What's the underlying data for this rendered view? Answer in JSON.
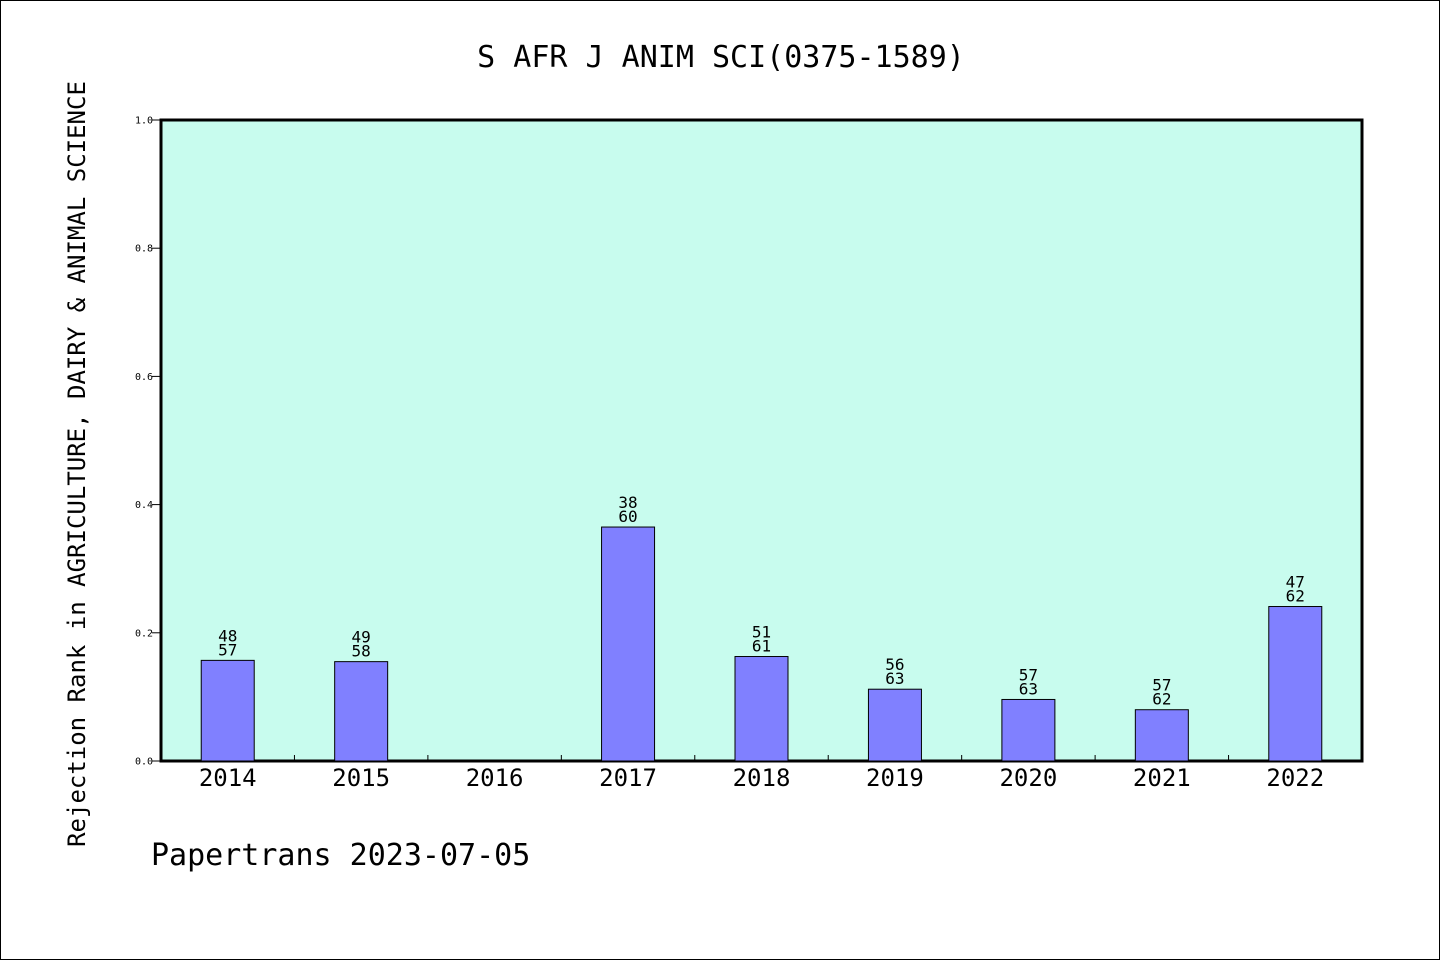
{
  "chart_data": {
    "type": "bar",
    "title": "S AFR J ANIM SCI(0375-1589)",
    "ylabel": "Rejection Rank in AGRICULTURE, DAIRY & ANIMAL SCIENCE",
    "xlabel": "",
    "ylim": [
      0,
      1.0
    ],
    "yticks": [
      "0.0",
      "0.2",
      "0.4",
      "0.6",
      "0.8",
      "1.0"
    ],
    "grid": false,
    "categories": [
      "2014",
      "2015",
      "2016",
      "2017",
      "2018",
      "2019",
      "2020",
      "2021",
      "2022"
    ],
    "values": [
      0.157,
      0.155,
      null,
      0.365,
      0.163,
      0.112,
      0.096,
      0.08,
      0.241
    ],
    "rank_labels": [
      {
        "rank": "48",
        "total": "57"
      },
      {
        "rank": "49",
        "total": "58"
      },
      {
        "rank": "",
        "total": ""
      },
      {
        "rank": "38",
        "total": "60"
      },
      {
        "rank": "51",
        "total": "61"
      },
      {
        "rank": "56",
        "total": "63"
      },
      {
        "rank": "57",
        "total": "63"
      },
      {
        "rank": "57",
        "total": "62"
      },
      {
        "rank": "47",
        "total": "62"
      }
    ],
    "colors": {
      "plot_background": "#c8fcee",
      "bar_fill": "#8080ff",
      "bar_stroke": "#000000"
    }
  },
  "footer": "Papertrans 2023-07-05"
}
